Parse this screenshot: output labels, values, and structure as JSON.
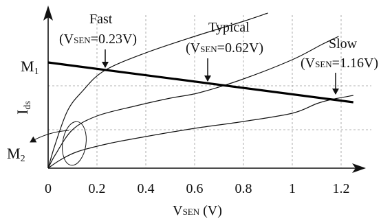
{
  "chart_data": {
    "type": "line",
    "xlabel_main": "V",
    "xlabel_sub": "SEN",
    "xlabel_unit": " (V)",
    "ylabel_main": "I",
    "ylabel_sub": "ds",
    "xlim": [
      0,
      1.25
    ],
    "xticks": [
      {
        "value": 0,
        "label": "0"
      },
      {
        "value": 0.2,
        "label": "0.2"
      },
      {
        "value": 0.4,
        "label": "0.4"
      },
      {
        "value": 0.6,
        "label": "0.6"
      },
      {
        "value": 0.8,
        "label": "0.8"
      },
      {
        "value": 1.0,
        "label": "1"
      },
      {
        "value": 1.2,
        "label": "1.2"
      }
    ],
    "grid": "dashed",
    "series": [
      {
        "name": "Fast",
        "points": [
          [
            0,
            0
          ],
          [
            0.03,
            0.18
          ],
          [
            0.08,
            0.42
          ],
          [
            0.14,
            0.56
          ],
          [
            0.23,
            0.71
          ],
          [
            0.4,
            0.84
          ],
          [
            0.6,
            0.96
          ],
          [
            0.8,
            1.07
          ],
          [
            0.9,
            1.13
          ]
        ]
      },
      {
        "name": "Typical",
        "points": [
          [
            0,
            0
          ],
          [
            0.03,
            0.1
          ],
          [
            0.1,
            0.28
          ],
          [
            0.2,
            0.38
          ],
          [
            0.35,
            0.45
          ],
          [
            0.5,
            0.51
          ],
          [
            0.62,
            0.55
          ],
          [
            0.8,
            0.65
          ],
          [
            1.0,
            0.79
          ],
          [
            1.12,
            0.9
          ],
          [
            1.19,
            0.96
          ]
        ]
      },
      {
        "name": "Slow",
        "points": [
          [
            0,
            0
          ],
          [
            0.05,
            0.06
          ],
          [
            0.12,
            0.12
          ],
          [
            0.25,
            0.18
          ],
          [
            0.4,
            0.23
          ],
          [
            0.6,
            0.29
          ],
          [
            0.8,
            0.34
          ],
          [
            1.0,
            0.4
          ],
          [
            1.1,
            0.47
          ],
          [
            1.16,
            0.5
          ],
          [
            1.25,
            0.53
          ]
        ]
      }
    ],
    "load_line": {
      "points": [
        [
          0,
          0.77
        ],
        [
          1.25,
          0.48
        ]
      ]
    },
    "labels": {
      "m1_main": "M",
      "m1_sub": "1",
      "m2_main": "M",
      "m2_sub": "2",
      "fast_name": "Fast",
      "typical_name": "Typical",
      "slow_name": "Slow",
      "fast_value": "=0.23V)",
      "typical_value": "=0.62V)",
      "slow_value": "=1.16V)",
      "vsen_open": "(V",
      "vsen_sub": "SEN"
    }
  }
}
